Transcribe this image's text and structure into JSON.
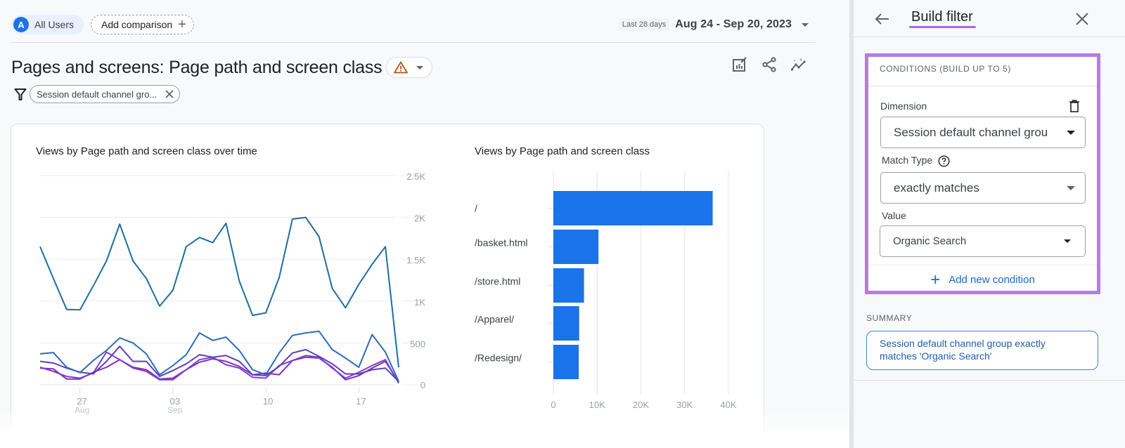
{
  "header": {
    "segment": {
      "avatar_letter": "A",
      "label": "All Users"
    },
    "add_comparison_label": "Add comparison",
    "date_badge": "Last 28 days",
    "date_range": "Aug 24 - Sep 20, 2023"
  },
  "report": {
    "title": "Pages and screens: Page path and screen class",
    "filter_chip": "Session default channel gro...",
    "actions": [
      "customize-report-icon",
      "share-icon",
      "insights-icon"
    ]
  },
  "charts": {
    "line_title": "Views by Page path and screen class over time",
    "bar_title": "Views by Page path and screen class"
  },
  "chart_data": [
    {
      "type": "line",
      "title": "Views by Page path and screen class over time",
      "xlabel": "",
      "ylabel": "",
      "x": [
        "Aug 24",
        "Aug 25",
        "Aug 26",
        "Aug 27",
        "Aug 28",
        "Aug 29",
        "Aug 30",
        "Aug 31",
        "Sep 01",
        "Sep 02",
        "Sep 03",
        "Sep 04",
        "Sep 05",
        "Sep 06",
        "Sep 07",
        "Sep 08",
        "Sep 09",
        "Sep 10",
        "Sep 11",
        "Sep 12",
        "Sep 13",
        "Sep 14",
        "Sep 15",
        "Sep 16",
        "Sep 17",
        "Sep 18",
        "Sep 19",
        "Sep 20"
      ],
      "x_ticks": [
        {
          "label": "27",
          "sub": "Aug"
        },
        {
          "label": "03",
          "sub": "Sep"
        },
        {
          "label": "10",
          "sub": ""
        },
        {
          "label": "17",
          "sub": ""
        }
      ],
      "y_ticks": [
        "0",
        "500",
        "1K",
        "1.5K",
        "2K",
        "2.5K"
      ],
      "ylim": [
        0,
        2500
      ],
      "y_axis_position": "right",
      "grid": true,
      "series": [
        {
          "name": "/",
          "color": "#1f6e9c",
          "values": [
            1650,
            1270,
            900,
            895,
            1180,
            1480,
            1920,
            1480,
            1270,
            940,
            1130,
            1650,
            1760,
            1700,
            1930,
            1240,
            830,
            860,
            1280,
            1980,
            2000,
            1770,
            1150,
            920,
            1200,
            1440,
            1650,
            210
          ]
        },
        {
          "name": "/basket.html",
          "color": "#2a6cb8",
          "values": [
            370,
            385,
            210,
            145,
            290,
            410,
            560,
            500,
            370,
            120,
            230,
            360,
            620,
            530,
            570,
            410,
            180,
            120,
            380,
            590,
            620,
            640,
            420,
            320,
            210,
            600,
            390,
            40
          ]
        },
        {
          "name": "/store.html",
          "color": "#5a3fc0",
          "values": [
            280,
            260,
            200,
            150,
            130,
            280,
            460,
            280,
            280,
            100,
            170,
            250,
            360,
            330,
            350,
            280,
            120,
            110,
            220,
            380,
            420,
            340,
            250,
            130,
            130,
            180,
            200,
            40
          ]
        },
        {
          "name": "/Apparel/",
          "color": "#7b3fd0",
          "values": [
            210,
            160,
            100,
            80,
            140,
            390,
            300,
            200,
            160,
            60,
            60,
            180,
            300,
            330,
            240,
            200,
            90,
            80,
            230,
            290,
            350,
            330,
            200,
            80,
            150,
            230,
            300,
            20
          ]
        },
        {
          "name": "/Redesign/",
          "color": "#8a2ab8",
          "values": [
            200,
            190,
            70,
            70,
            150,
            210,
            300,
            210,
            180,
            70,
            80,
            180,
            270,
            310,
            280,
            220,
            120,
            140,
            120,
            290,
            330,
            320,
            210,
            60,
            110,
            200,
            280,
            30
          ]
        }
      ]
    },
    {
      "type": "bar",
      "orientation": "horizontal",
      "title": "Views by Page path and screen class",
      "categories": [
        "/",
        "/basket.html",
        "/store.html",
        "/Apparel/",
        "/Redesign/"
      ],
      "values": [
        36400,
        10300,
        7000,
        5900,
        5800
      ],
      "x_ticks": [
        "0",
        "10K",
        "20K",
        "30K",
        "40K"
      ],
      "xlim": [
        0,
        40000
      ],
      "grid": true,
      "color": "#1a73e8"
    }
  ],
  "panel": {
    "title": "Build filter",
    "conditions_heading": "CONDITIONS (BUILD UP TO 5)",
    "dimension_label": "Dimension",
    "dimension_value": "Session default channel grou",
    "match_type_label": "Match Type",
    "match_type_value": "exactly matches",
    "value_label": "Value",
    "value_value": "Organic Search",
    "add_condition_label": "Add new condition",
    "summary_label": "SUMMARY",
    "summary_text": "Session default channel group exactly matches 'Organic Search'",
    "highlight_color": "#b57ce8"
  }
}
